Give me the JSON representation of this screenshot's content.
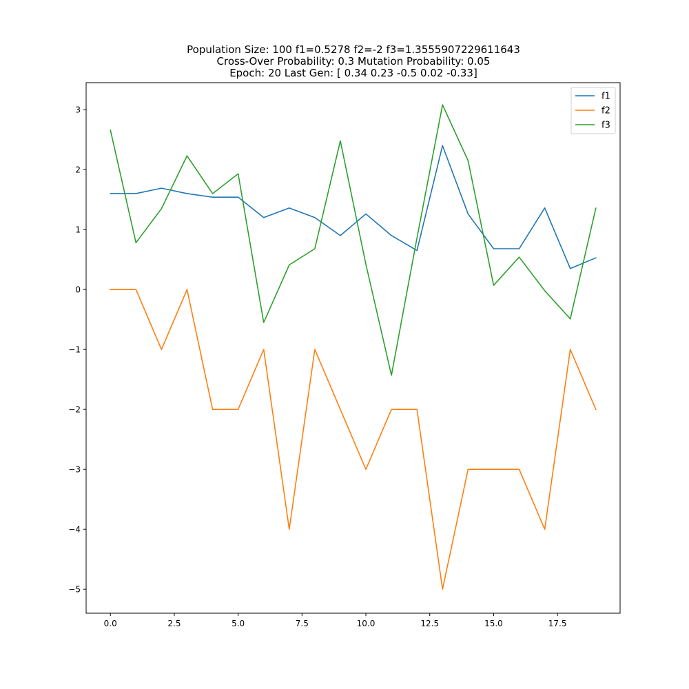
{
  "chart_data": {
    "type": "line",
    "title_lines": [
      "Population Size: 100 f1=0.5278 f2=-2 f3=1.3555907229611643",
      "Cross-Over Probability: 0.3 Mutation Probability: 0.05",
      "Epoch: 20 Last Gen: [ 0.34  0.23 -0.5   0.02 -0.33]"
    ],
    "xlabel": "",
    "ylabel": "",
    "x": [
      0,
      1,
      2,
      3,
      4,
      5,
      6,
      7,
      8,
      9,
      10,
      11,
      12,
      13,
      14,
      15,
      16,
      17,
      18,
      19
    ],
    "xlim": [
      -0.95,
      19.95
    ],
    "ylim": [
      -5.4,
      3.45
    ],
    "x_ticks": [
      0.0,
      2.5,
      5.0,
      7.5,
      10.0,
      12.5,
      15.0,
      17.5
    ],
    "x_tick_labels": [
      "0.0",
      "2.5",
      "5.0",
      "7.5",
      "10.0",
      "12.5",
      "15.0",
      "17.5"
    ],
    "y_ticks": [
      -5,
      -4,
      -3,
      -2,
      -1,
      0,
      1,
      2,
      3
    ],
    "y_tick_labels": [
      "−5",
      "−4",
      "−3",
      "−2",
      "−1",
      "0",
      "1",
      "2",
      "3"
    ],
    "grid": false,
    "legend_position": "top-right",
    "series": [
      {
        "name": "f1",
        "color": "#1f77b4",
        "values": [
          1.6,
          1.6,
          1.69,
          1.6,
          1.54,
          1.54,
          1.2,
          1.36,
          1.2,
          0.9,
          1.26,
          0.9,
          0.65,
          2.4,
          1.26,
          0.68,
          0.68,
          1.36,
          0.35,
          0.5278
        ]
      },
      {
        "name": "f2",
        "color": "#ff7f0e",
        "values": [
          0,
          0,
          -1,
          0,
          -2,
          -2,
          -1,
          -4,
          -1,
          -2,
          -3,
          -2,
          -2,
          -5,
          -3,
          -3,
          -3,
          -4,
          -1,
          -2
        ]
      },
      {
        "name": "f3",
        "color": "#2ca02c",
        "values": [
          2.66,
          0.78,
          1.35,
          2.23,
          1.6,
          1.93,
          -0.55,
          0.41,
          0.68,
          2.48,
          0.42,
          -1.43,
          0.86,
          3.08,
          2.15,
          0.07,
          0.54,
          -0.02,
          -0.49,
          1.3556
        ]
      }
    ]
  }
}
